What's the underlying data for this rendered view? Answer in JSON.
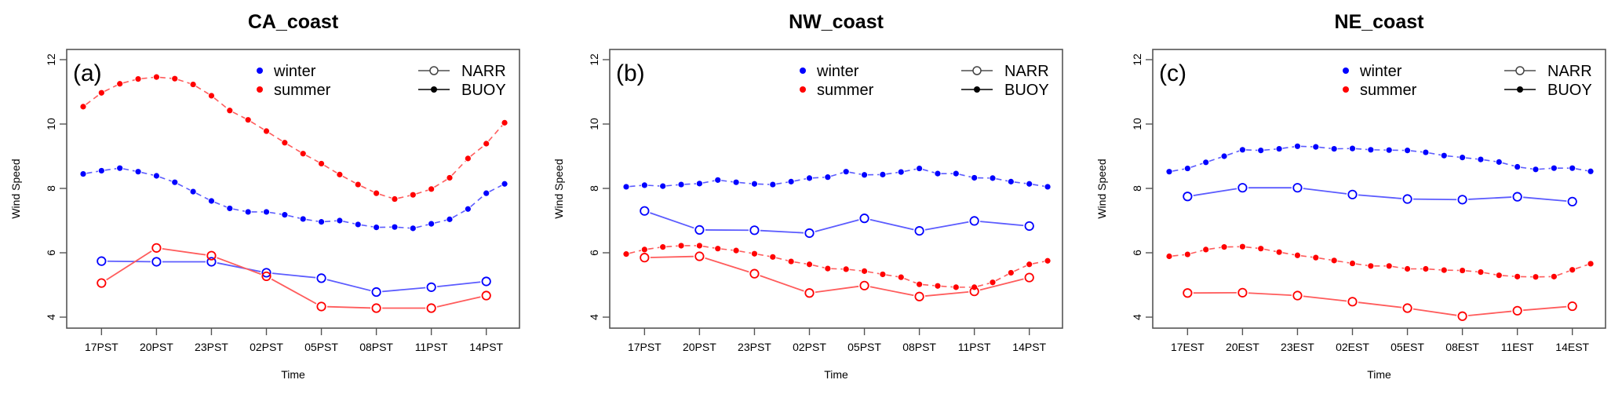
{
  "chart_data": [
    {
      "type": "line",
      "panel_tag": "(a)",
      "title": "CA_coast",
      "xlabel": "Time",
      "ylabel": "Wind Speed",
      "ylim": [
        3.75,
        12.3
      ],
      "yticks": [
        4,
        6,
        8,
        10,
        12
      ],
      "xlim": [
        -0.9,
        23.9
      ],
      "xticks": [
        1,
        4,
        7,
        10,
        13,
        16,
        19,
        22
      ],
      "xtick_labels": [
        "17PST",
        "20PST",
        "23PST",
        "02PST",
        "05PST",
        "08PST",
        "11PST",
        "14PST"
      ],
      "grid": false,
      "legend": {
        "season_entries": [
          {
            "label": "winter",
            "color": "#0000ff"
          },
          {
            "label": "summer",
            "color": "#ff0000"
          }
        ],
        "source_entries": [
          {
            "label": "NARR",
            "marker": "open-circle",
            "line": "solid"
          },
          {
            "label": "BUOY",
            "marker": "filled-dot",
            "line": "solid"
          }
        ],
        "placement": "top"
      },
      "series": [
        {
          "name": "BUOY winter",
          "source": "BUOY",
          "season": "winter",
          "color": "#0000ff",
          "x": [
            0,
            1,
            2,
            3,
            4,
            5,
            6,
            7,
            8,
            9,
            10,
            11,
            12,
            13,
            14,
            15,
            16,
            17,
            18,
            19,
            20,
            21,
            22,
            23
          ],
          "values": [
            8.45,
            8.55,
            8.63,
            8.52,
            8.39,
            8.19,
            7.9,
            7.61,
            7.38,
            7.27,
            7.27,
            7.18,
            7.05,
            6.96,
            7.0,
            6.88,
            6.79,
            6.8,
            6.76,
            6.9,
            7.04,
            7.36,
            7.85,
            8.14
          ]
        },
        {
          "name": "BUOY summer",
          "source": "BUOY",
          "season": "summer",
          "color": "#ff0000",
          "x": [
            0,
            1,
            2,
            3,
            4,
            5,
            6,
            7,
            8,
            9,
            10,
            11,
            12,
            13,
            14,
            15,
            16,
            17,
            18,
            19,
            20,
            21,
            22,
            23
          ],
          "values": [
            10.54,
            10.97,
            11.25,
            11.4,
            11.46,
            11.41,
            11.23,
            10.88,
            10.42,
            10.13,
            9.78,
            9.42,
            9.08,
            8.77,
            8.43,
            8.12,
            7.85,
            7.67,
            7.8,
            7.98,
            8.33,
            8.93,
            9.39,
            10.04
          ]
        },
        {
          "name": "NARR winter",
          "source": "NARR",
          "season": "winter",
          "color": "#0000ff",
          "x": [
            1,
            4,
            7,
            10,
            13,
            16,
            19,
            22
          ],
          "values": [
            5.74,
            5.72,
            5.72,
            5.38,
            5.21,
            4.78,
            4.93,
            5.11
          ]
        },
        {
          "name": "NARR summer",
          "source": "NARR",
          "season": "summer",
          "color": "#ff0000",
          "x": [
            1,
            4,
            7,
            10,
            13,
            16,
            19,
            22
          ],
          "values": [
            5.06,
            6.15,
            5.91,
            5.27,
            4.33,
            4.28,
            4.28,
            4.67
          ]
        }
      ]
    },
    {
      "type": "line",
      "panel_tag": "(b)",
      "title": "NW_coast",
      "xlabel": "Time",
      "ylabel": "Wind Speed",
      "ylim": [
        3.75,
        12.3
      ],
      "yticks": [
        4,
        6,
        8,
        10,
        12
      ],
      "xlim": [
        -0.9,
        23.9
      ],
      "xticks": [
        1,
        4,
        7,
        10,
        13,
        16,
        19,
        22
      ],
      "xtick_labels": [
        "17PST",
        "20PST",
        "23PST",
        "02PST",
        "05PST",
        "08PST",
        "11PST",
        "14PST"
      ],
      "grid": false,
      "legend": {
        "season_entries": [
          {
            "label": "winter",
            "color": "#0000ff"
          },
          {
            "label": "summer",
            "color": "#ff0000"
          }
        ],
        "source_entries": [
          {
            "label": "NARR",
            "marker": "open-circle",
            "line": "solid"
          },
          {
            "label": "BUOY",
            "marker": "filled-dot",
            "line": "solid"
          }
        ],
        "placement": "top"
      },
      "series": [
        {
          "name": "BUOY winter",
          "source": "BUOY",
          "season": "winter",
          "color": "#0000ff",
          "x": [
            0,
            1,
            2,
            3,
            4,
            5,
            6,
            7,
            8,
            9,
            10,
            11,
            12,
            13,
            14,
            15,
            16,
            17,
            18,
            19,
            20,
            21,
            22,
            23
          ],
          "values": [
            8.05,
            8.1,
            8.07,
            8.12,
            8.15,
            8.26,
            8.19,
            8.14,
            8.12,
            8.21,
            8.32,
            8.35,
            8.52,
            8.42,
            8.43,
            8.51,
            8.62,
            8.46,
            8.46,
            8.33,
            8.32,
            8.21,
            8.14,
            8.05
          ]
        },
        {
          "name": "BUOY summer",
          "source": "BUOY",
          "season": "summer",
          "color": "#ff0000",
          "x": [
            0,
            1,
            2,
            3,
            4,
            5,
            6,
            7,
            8,
            9,
            10,
            11,
            12,
            13,
            14,
            15,
            16,
            17,
            18,
            19,
            20,
            21,
            22,
            23
          ],
          "values": [
            5.96,
            6.1,
            6.18,
            6.22,
            6.22,
            6.13,
            6.07,
            5.97,
            5.87,
            5.73,
            5.64,
            5.51,
            5.49,
            5.43,
            5.33,
            5.24,
            5.02,
            4.97,
            4.93,
            4.93,
            5.08,
            5.38,
            5.64,
            5.75
          ]
        },
        {
          "name": "NARR winter",
          "source": "NARR",
          "season": "winter",
          "color": "#0000ff",
          "x": [
            1,
            4,
            7,
            10,
            13,
            16,
            19,
            22
          ],
          "values": [
            7.3,
            6.71,
            6.7,
            6.61,
            7.07,
            6.68,
            6.99,
            6.83
          ]
        },
        {
          "name": "NARR summer",
          "source": "NARR",
          "season": "summer",
          "color": "#ff0000",
          "x": [
            1,
            4,
            7,
            10,
            13,
            16,
            19,
            22
          ],
          "values": [
            5.85,
            5.89,
            5.35,
            4.75,
            4.98,
            4.64,
            4.8,
            5.23
          ]
        }
      ]
    },
    {
      "type": "line",
      "panel_tag": "(c)",
      "title": "NE_coast",
      "xlabel": "Time",
      "ylabel": "Wind Speed",
      "ylim": [
        3.75,
        12.3
      ],
      "yticks": [
        4,
        6,
        8,
        10,
        12
      ],
      "xlim": [
        -0.9,
        23.9
      ],
      "xticks": [
        1,
        4,
        7,
        10,
        13,
        16,
        19,
        22
      ],
      "xtick_labels": [
        "17EST",
        "20EST",
        "23EST",
        "02EST",
        "05EST",
        "08EST",
        "11EST",
        "14EST"
      ],
      "grid": false,
      "legend": {
        "season_entries": [
          {
            "label": "winter",
            "color": "#0000ff"
          },
          {
            "label": "summer",
            "color": "#ff0000"
          }
        ],
        "source_entries": [
          {
            "label": "NARR",
            "marker": "open-circle",
            "line": "solid"
          },
          {
            "label": "BUOY",
            "marker": "filled-dot",
            "line": "solid"
          }
        ],
        "placement": "top"
      },
      "series": [
        {
          "name": "BUOY winter",
          "source": "BUOY",
          "season": "winter",
          "color": "#0000ff",
          "x": [
            0,
            1,
            2,
            3,
            4,
            5,
            6,
            7,
            8,
            9,
            10,
            11,
            12,
            13,
            14,
            15,
            16,
            17,
            18,
            19,
            20,
            21,
            22,
            23
          ],
          "values": [
            8.52,
            8.62,
            8.81,
            9.0,
            9.2,
            9.18,
            9.23,
            9.31,
            9.29,
            9.23,
            9.24,
            9.2,
            9.19,
            9.18,
            9.12,
            9.02,
            8.96,
            8.9,
            8.82,
            8.67,
            8.59,
            8.63,
            8.63,
            8.53
          ]
        },
        {
          "name": "BUOY summer",
          "source": "BUOY",
          "season": "summer",
          "color": "#ff0000",
          "x": [
            0,
            1,
            2,
            3,
            4,
            5,
            6,
            7,
            8,
            9,
            10,
            11,
            12,
            13,
            14,
            15,
            16,
            17,
            18,
            19,
            20,
            21,
            22,
            23
          ],
          "values": [
            5.89,
            5.95,
            6.1,
            6.18,
            6.19,
            6.13,
            6.02,
            5.92,
            5.85,
            5.76,
            5.67,
            5.59,
            5.59,
            5.5,
            5.5,
            5.46,
            5.45,
            5.4,
            5.3,
            5.26,
            5.25,
            5.26,
            5.47,
            5.66
          ]
        },
        {
          "name": "NARR winter",
          "source": "NARR",
          "season": "winter",
          "color": "#0000ff",
          "x": [
            1,
            4,
            7,
            10,
            13,
            16,
            19,
            22
          ],
          "values": [
            7.75,
            8.02,
            8.02,
            7.81,
            7.67,
            7.65,
            7.74,
            7.59
          ]
        },
        {
          "name": "NARR summer",
          "source": "NARR",
          "season": "summer",
          "color": "#ff0000",
          "x": [
            1,
            4,
            7,
            10,
            13,
            16,
            19,
            22
          ],
          "values": [
            4.75,
            4.76,
            4.67,
            4.48,
            4.28,
            4.03,
            4.2,
            4.34
          ]
        }
      ]
    }
  ]
}
